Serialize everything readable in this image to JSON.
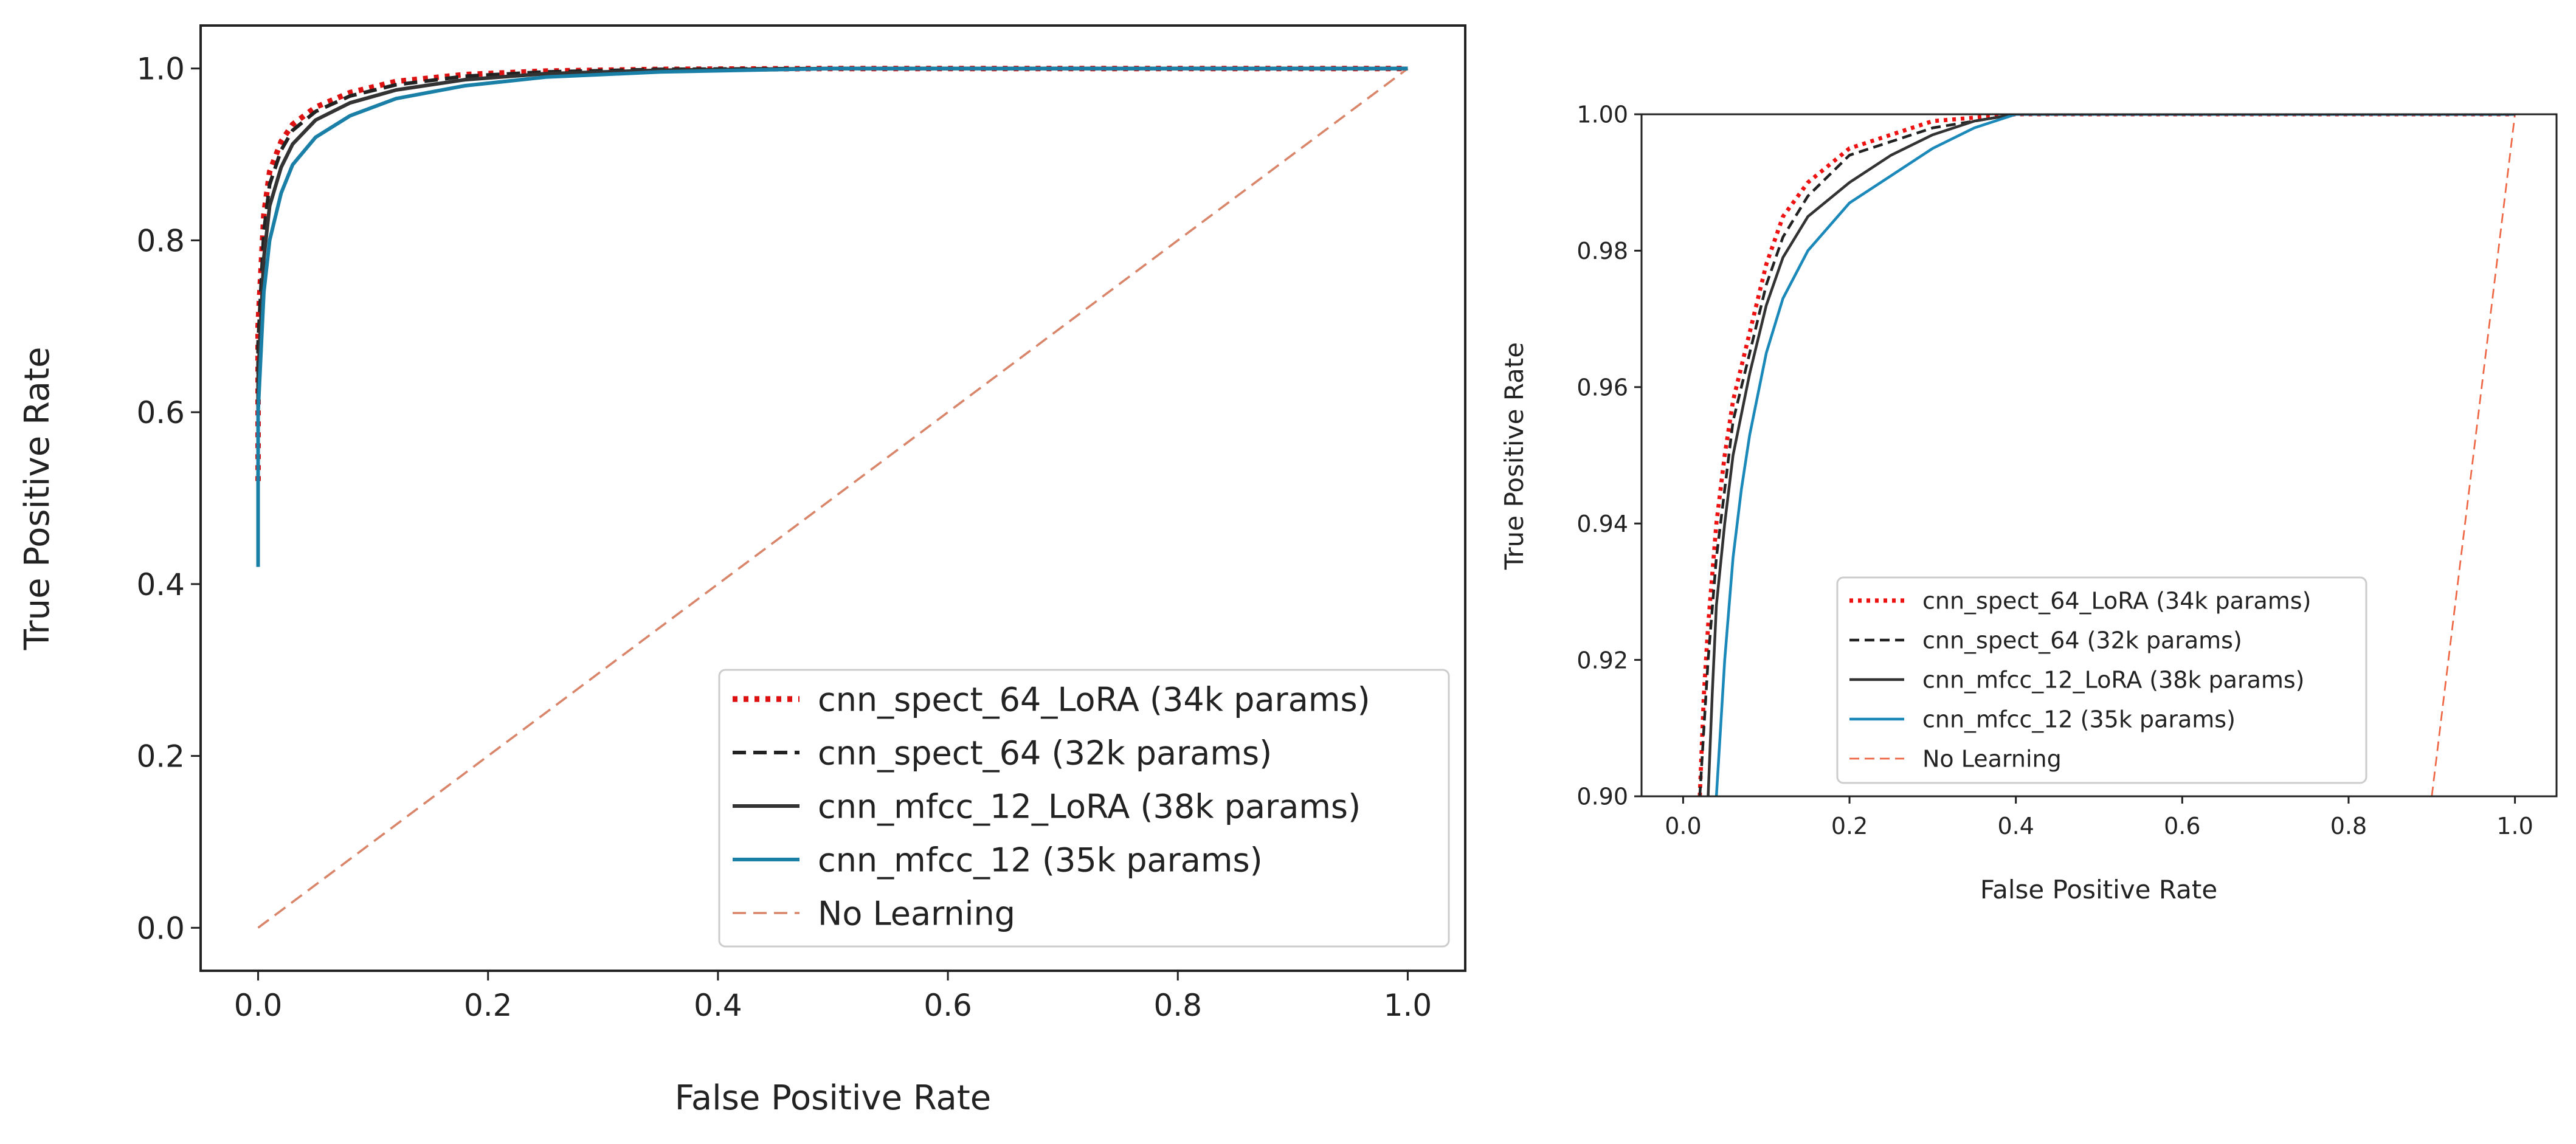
{
  "chart_data": [
    {
      "type": "line",
      "xlabel": "False Positive Rate",
      "ylabel": "True Positive Rate",
      "xlim": [
        -0.05,
        1.05
      ],
      "ylim": [
        -0.05,
        1.05
      ],
      "xticks": [
        "0.0",
        "0.2",
        "0.4",
        "0.6",
        "0.8",
        "1.0"
      ],
      "yticks": [
        "0.0",
        "0.2",
        "0.4",
        "0.6",
        "0.8",
        "1.0"
      ],
      "legend_position": "lower-right",
      "series": [
        {
          "name": "cnn_spect_64_LoRA (34k params)",
          "color": "#dd1111",
          "style": "dotted",
          "x": [
            0,
            0,
            0.005,
            0.01,
            0.02,
            0.03,
            0.05,
            0.08,
            0.12,
            0.18,
            0.25,
            0.35,
            0.5,
            1.0
          ],
          "y": [
            0.52,
            0.7,
            0.83,
            0.88,
            0.915,
            0.935,
            0.955,
            0.972,
            0.985,
            0.993,
            0.997,
            0.999,
            1.0,
            1.0
          ]
        },
        {
          "name": "cnn_spect_64 (32k params)",
          "color": "#222222",
          "style": "dashed",
          "x": [
            0,
            0,
            0.005,
            0.01,
            0.02,
            0.03,
            0.05,
            0.08,
            0.12,
            0.18,
            0.25,
            0.35,
            0.5,
            1.0
          ],
          "y": [
            0.5,
            0.68,
            0.81,
            0.865,
            0.905,
            0.928,
            0.95,
            0.968,
            0.981,
            0.991,
            0.996,
            0.999,
            1.0,
            1.0
          ]
        },
        {
          "name": "cnn_mfcc_12_LoRA (38k params)",
          "color": "#333333",
          "style": "solid",
          "x": [
            0,
            0,
            0.005,
            0.01,
            0.02,
            0.03,
            0.05,
            0.08,
            0.12,
            0.18,
            0.25,
            0.35,
            0.5,
            1.0
          ],
          "y": [
            0.46,
            0.64,
            0.78,
            0.84,
            0.885,
            0.912,
            0.94,
            0.96,
            0.975,
            0.987,
            0.994,
            0.998,
            1.0,
            1.0
          ]
        },
        {
          "name": "cnn_mfcc_12 (35k params)",
          "color": "#1a7fa6",
          "style": "solid",
          "x": [
            0,
            0,
            0.005,
            0.01,
            0.02,
            0.03,
            0.05,
            0.08,
            0.12,
            0.18,
            0.25,
            0.35,
            0.5,
            1.0
          ],
          "y": [
            0.42,
            0.6,
            0.74,
            0.8,
            0.855,
            0.888,
            0.92,
            0.945,
            0.965,
            0.98,
            0.99,
            0.996,
            1.0,
            1.0
          ]
        },
        {
          "name": "No Learning",
          "color": "#d9856a",
          "style": "dashed",
          "x": [
            0,
            1
          ],
          "y": [
            0,
            1
          ]
        }
      ]
    },
    {
      "type": "line",
      "xlabel": "False Positive Rate",
      "ylabel": "True Positive Rate",
      "xlim": [
        -0.05,
        1.05
      ],
      "ylim": [
        0.9,
        1.0
      ],
      "xticks": [
        "0.0",
        "0.2",
        "0.4",
        "0.6",
        "0.8",
        "1.0"
      ],
      "yticks": [
        "0.90",
        "0.92",
        "0.94",
        "0.96",
        "0.98",
        "1.00"
      ],
      "legend_position": "lower-center",
      "series": [
        {
          "name": "cnn_spect_64_LoRA (34k params)",
          "color": "#ee1111",
          "style": "dotted",
          "x": [
            0.02,
            0.025,
            0.03,
            0.04,
            0.05,
            0.06,
            0.08,
            0.1,
            0.12,
            0.15,
            0.2,
            0.25,
            0.3,
            0.35,
            0.4,
            1.0
          ],
          "y": [
            0.9,
            0.915,
            0.925,
            0.94,
            0.95,
            0.958,
            0.968,
            0.978,
            0.985,
            0.99,
            0.995,
            0.997,
            0.999,
            0.9995,
            1.0,
            1.0
          ]
        },
        {
          "name": "cnn_spect_64 (32k params)",
          "color": "#222222",
          "style": "dashed",
          "x": [
            0.02,
            0.025,
            0.03,
            0.04,
            0.05,
            0.06,
            0.08,
            0.1,
            0.12,
            0.15,
            0.2,
            0.25,
            0.3,
            0.35,
            0.4,
            1.0
          ],
          "y": [
            0.9,
            0.91,
            0.92,
            0.935,
            0.945,
            0.955,
            0.965,
            0.975,
            0.982,
            0.988,
            0.994,
            0.996,
            0.998,
            0.999,
            1.0,
            1.0
          ]
        },
        {
          "name": "cnn_mfcc_12_LoRA (38k params)",
          "color": "#333333",
          "style": "solid",
          "x": [
            0.03,
            0.035,
            0.04,
            0.05,
            0.06,
            0.08,
            0.1,
            0.12,
            0.15,
            0.2,
            0.25,
            0.3,
            0.35,
            0.4,
            1.0
          ],
          "y": [
            0.9,
            0.915,
            0.928,
            0.94,
            0.95,
            0.962,
            0.972,
            0.979,
            0.985,
            0.99,
            0.994,
            0.997,
            0.999,
            1.0,
            1.0
          ]
        },
        {
          "name": "cnn_mfcc_12 (35k params)",
          "color": "#1a88b8",
          "style": "solid",
          "x": [
            0.04,
            0.045,
            0.05,
            0.06,
            0.07,
            0.08,
            0.1,
            0.12,
            0.15,
            0.2,
            0.25,
            0.3,
            0.35,
            0.4,
            1.0
          ],
          "y": [
            0.9,
            0.91,
            0.92,
            0.935,
            0.945,
            0.953,
            0.965,
            0.973,
            0.98,
            0.987,
            0.991,
            0.995,
            0.998,
            1.0,
            1.0
          ]
        },
        {
          "name": "No Learning",
          "color": "#ee6644",
          "style": "dashed",
          "x": [
            0.9,
            1.0
          ],
          "y": [
            0.9,
            1.0
          ]
        }
      ]
    }
  ]
}
